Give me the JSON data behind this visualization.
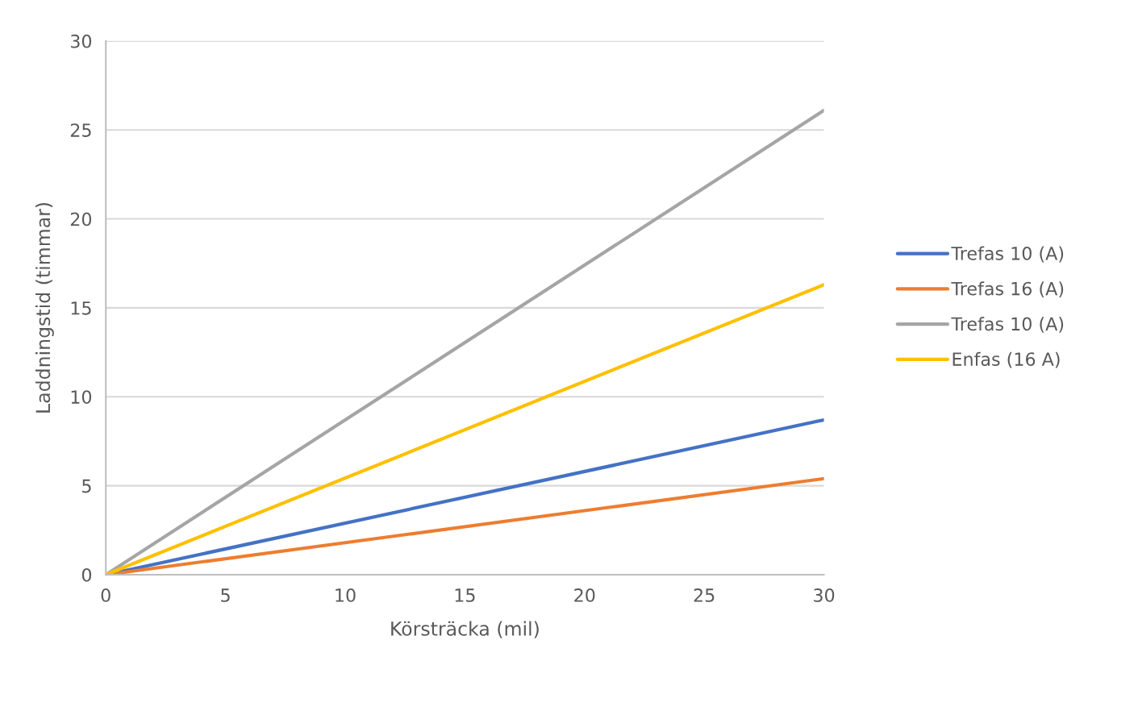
{
  "chart_data": {
    "type": "line",
    "xlabel": "Körsträcka (mil)",
    "ylabel": "Laddningstid (timmar)",
    "x": [
      0,
      30
    ],
    "series": [
      {
        "name": "Trefas 10 (A)",
        "color": "#4472c4",
        "values": [
          0,
          8.7
        ]
      },
      {
        "name": "Trefas 16 (A)",
        "color": "#ed7d31",
        "values": [
          0,
          5.4
        ]
      },
      {
        "name": "Trefas 10 (A)",
        "color": "#a5a5a5",
        "values": [
          0,
          26.1
        ]
      },
      {
        "name": "Enfas (16 A)",
        "color": "#ffc000",
        "values": [
          0,
          16.3
        ]
      }
    ],
    "xlim": [
      0,
      30
    ],
    "xticks": [
      0,
      5,
      10,
      15,
      20,
      25,
      30
    ],
    "ylim": [
      0,
      30
    ],
    "yticks": [
      0,
      5,
      10,
      15,
      20,
      25,
      30
    ],
    "grid": "y",
    "legend": "right",
    "marker": "none",
    "line_style": "solid"
  }
}
